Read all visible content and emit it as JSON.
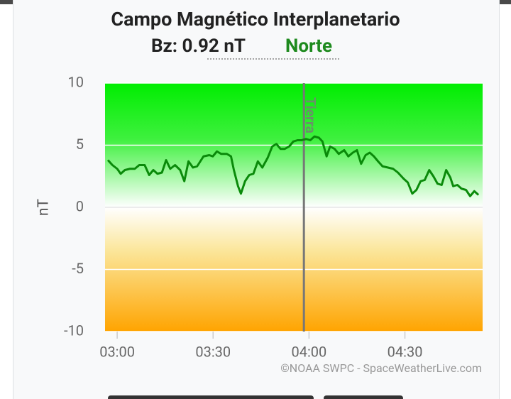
{
  "chart_data": {
    "type": "line",
    "title": "Campo Magnético Interplanetario",
    "subtitle": "Bz: 0.92 nT",
    "status": "Norte",
    "y_label": "nT",
    "credit": "©NOAA SWPC - SpaceWeatherLive.com",
    "marker": {
      "value": 238.4,
      "label": "Tierra"
    },
    "series": [
      {
        "color": "#0a8a0a",
        "x": [
          177.1,
          178.5,
          180,
          181.1,
          182.4,
          184,
          185.5,
          186.9,
          188.6,
          190,
          191.3,
          192.6,
          194,
          195.3,
          196.6,
          198.1,
          199.7,
          201,
          202.3,
          203.7,
          205,
          207,
          208.8,
          209.9,
          211.2,
          212.5,
          214.3,
          215.6,
          216.5,
          217.8,
          218.7,
          220,
          221.3,
          222.6,
          224,
          225.4,
          227.1,
          228.5,
          229.8,
          231.1,
          232.4,
          233.8,
          235.1,
          236.4,
          237.7,
          239.1,
          240.4,
          241.7,
          243.1,
          244.2,
          245.5,
          246.6,
          248,
          249.3,
          251,
          252.3,
          253.7,
          255,
          256.3,
          257.7,
          259,
          260.3,
          261.6,
          263,
          264.7,
          266.3,
          267.8,
          269.6,
          270.9,
          272.3,
          273.6,
          274.9,
          276.2,
          277.6,
          278.9,
          280.2,
          281.5,
          282.9,
          284.2,
          285.1,
          286.4,
          287.7,
          289.1,
          290.4,
          291.7,
          293
        ],
        "values": [
          3.8,
          3.4,
          3.1,
          2.7,
          3.0,
          3.1,
          3.1,
          3.4,
          3.4,
          2.6,
          3.0,
          2.7,
          2.8,
          3.8,
          3.1,
          3.4,
          3.0,
          2.1,
          3.7,
          3.2,
          3.3,
          4.1,
          4.2,
          4.1,
          4.5,
          4.3,
          4.3,
          4.1,
          3.0,
          1.7,
          1.1,
          2.1,
          2.6,
          2.7,
          3.7,
          3.2,
          4.0,
          4.9,
          5.1,
          4.7,
          4.7,
          4.9,
          5.3,
          5.4,
          5.4,
          5.5,
          5.4,
          5.7,
          5.6,
          5.3,
          4.1,
          4.9,
          4.7,
          4.3,
          4.6,
          4.1,
          4.4,
          4.6,
          3.5,
          4.2,
          4.4,
          4.1,
          3.7,
          3.3,
          3.2,
          3.1,
          2.8,
          2.3,
          2.0,
          1.1,
          1.4,
          2.1,
          2.2,
          3.0,
          2.5,
          1.9,
          1.8,
          3.0,
          2.4,
          1.7,
          1.8,
          1.5,
          1.4,
          0.9,
          1.3,
          1.0
        ]
      }
    ],
    "xlim": [
      176.2,
      294.3
    ],
    "xticks": [
      {
        "value": 180,
        "label": "03:00"
      },
      {
        "value": 210,
        "label": "03:30"
      },
      {
        "value": 240,
        "label": "04:00"
      },
      {
        "value": 270,
        "label": "04:30"
      }
    ],
    "ylim": [
      -10,
      10
    ],
    "yticks": [
      10,
      5,
      0,
      -5,
      -10
    ],
    "grid": true
  }
}
